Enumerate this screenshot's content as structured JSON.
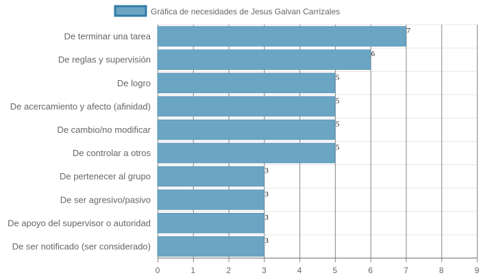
{
  "chart_data": {
    "type": "bar",
    "orientation": "horizontal",
    "categories": [
      "De terminar una tarea",
      "De reglas y supervisión",
      "De logro",
      "De acercamiento y afecto (afinidad)",
      "De cambio/no modificar",
      "De controlar a otros",
      "De pertenecer al grupo",
      "De ser agresivo/pasivo",
      "De apoyo del supervisor o autoridad",
      "De ser notificado (ser considerado)"
    ],
    "series": [
      {
        "name": "Gráfica de necesidades de Jesus Galvan Carrizales",
        "values": [
          7,
          6,
          5,
          5,
          5,
          5,
          3,
          3,
          3,
          3
        ]
      }
    ],
    "xlim": [
      0,
      9
    ],
    "x_ticks": [
      "0",
      "1",
      "2",
      "3",
      "4",
      "5",
      "6",
      "7",
      "8",
      "9"
    ],
    "grid": true,
    "legend_position": "top",
    "colors": {
      "bar_fill": "#6ba5c4",
      "bar_stroke": "#5b95b6",
      "legend_fill": "#6ba5c4",
      "legend_stroke": "#2f7ca6",
      "grid_major": "#666666",
      "grid_minor": "#e6e6e6"
    }
  }
}
